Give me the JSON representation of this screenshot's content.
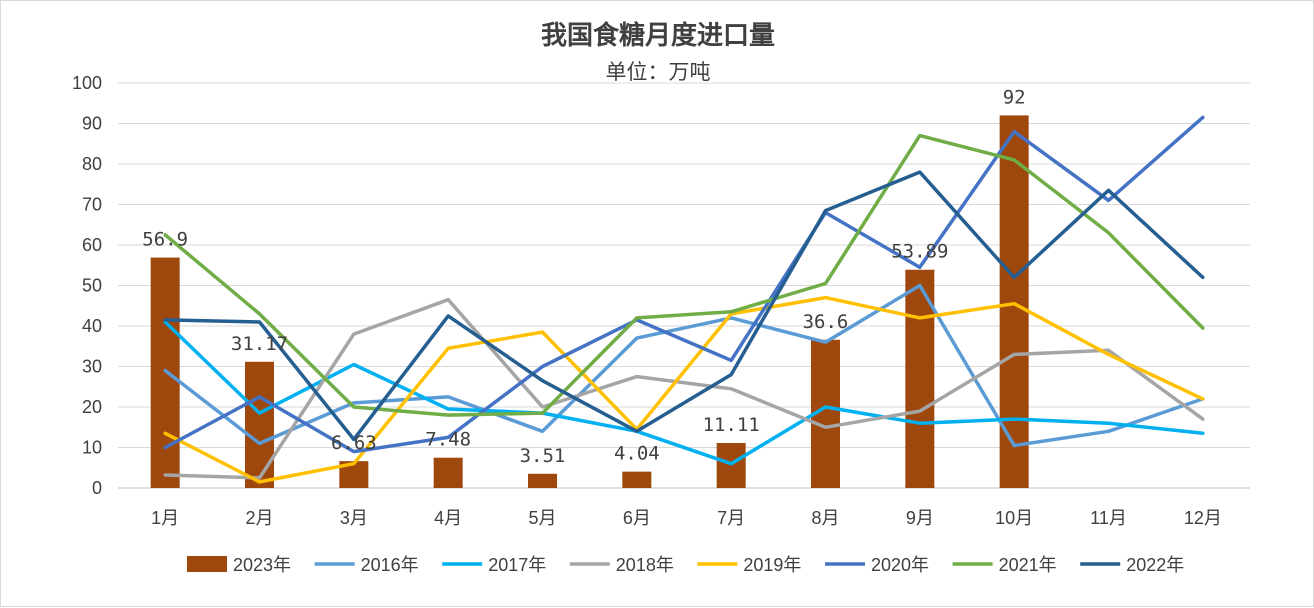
{
  "chart_data": {
    "type": "bar+line",
    "title": "我国食糖月度进口量",
    "subtitle": "单位：万吨",
    "categories": [
      "1月",
      "2月",
      "3月",
      "4月",
      "5月",
      "6月",
      "7月",
      "8月",
      "9月",
      "10月",
      "11月",
      "12月"
    ],
    "ylim": [
      0,
      100
    ],
    "yticks": [
      0,
      10,
      20,
      30,
      40,
      50,
      60,
      70,
      80,
      90,
      100
    ],
    "grid": true,
    "legend_position": "bottom",
    "bar_series": {
      "name": "2023年",
      "color": "#9e480e",
      "values": [
        56.9,
        31.17,
        6.63,
        7.48,
        3.51,
        4.04,
        11.11,
        36.6,
        53.89,
        92,
        null,
        null
      ],
      "labels": [
        "56.9",
        "31.17",
        "6.63",
        "7.48",
        "3.51",
        "4.04",
        "11.11",
        "36.6",
        "53.89",
        "92",
        "",
        ""
      ]
    },
    "line_series": [
      {
        "name": "2016年",
        "color": "#5b9bd5",
        "values": [
          29,
          11,
          21,
          22.5,
          14,
          37,
          42,
          36,
          50,
          10.5,
          14,
          22
        ]
      },
      {
        "name": "2017年",
        "color": "#00b0f0",
        "values": [
          41,
          18.5,
          30.5,
          19.5,
          18.5,
          14,
          6,
          20,
          16,
          17,
          16,
          13.5
        ]
      },
      {
        "name": "2018年",
        "color": "#a5a5a5",
        "values": [
          3.2,
          2.5,
          38,
          46.5,
          20,
          27.5,
          24.5,
          15,
          19,
          33,
          34,
          17
        ]
      },
      {
        "name": "2019年",
        "color": "#ffc000",
        "values": [
          13.5,
          1.5,
          6,
          34.5,
          38.5,
          14.5,
          43,
          47,
          42,
          45.5,
          33,
          22
        ]
      },
      {
        "name": "2020年",
        "color": "#4472c4",
        "values": [
          10,
          22.5,
          9,
          12.5,
          30,
          41.5,
          31.5,
          68,
          54.5,
          88,
          71,
          91.5
        ]
      },
      {
        "name": "2021年",
        "color": "#70ad47",
        "values": [
          62.5,
          43,
          20,
          18,
          18.5,
          42,
          43.5,
          50.5,
          87,
          81,
          63,
          39.5
        ]
      },
      {
        "name": "2022年",
        "color": "#255e91",
        "values": [
          41.5,
          41,
          12,
          42.5,
          26.5,
          14,
          28,
          68.5,
          78,
          52,
          73.5,
          52
        ]
      }
    ]
  }
}
